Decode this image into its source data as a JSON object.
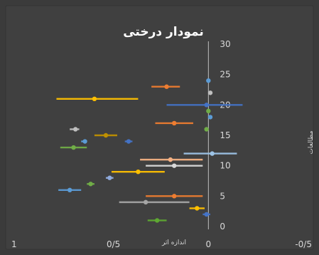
{
  "chart_data": {
    "type": "scatter",
    "title": "نمودار درختی",
    "xlabel": "اندازه اثر",
    "ylabel": "مطالعات",
    "x_reversed": true,
    "xlim": [
      -0.5,
      1
    ],
    "ylim": [
      0,
      30
    ],
    "x_ticks": [
      1,
      0.5,
      0,
      -0.5
    ],
    "x_tick_labels": [
      "1",
      "0/5",
      "0",
      "-0/5"
    ],
    "y_ticks": [
      0,
      5,
      10,
      15,
      20,
      25,
      30
    ],
    "y_tick_labels": [
      "0",
      "5",
      "10",
      "15",
      "20",
      "25",
      "30"
    ],
    "grid": false,
    "colors": {
      "background": "#3b3b3b",
      "plot_area": "#404040",
      "text": "#d9d9d9",
      "title": "#ffffff"
    },
    "points": [
      {
        "y": 1,
        "x": 0.27,
        "lo": 0.22,
        "hi": 0.32,
        "color": "#5ea832"
      },
      {
        "y": 2,
        "x": 0.01,
        "lo": -0.01,
        "hi": 0.03,
        "color": "#4472c4"
      },
      {
        "y": 3,
        "x": 0.06,
        "lo": 0.02,
        "hi": 0.1,
        "color": "#ffc000"
      },
      {
        "y": 4,
        "x": 0.33,
        "lo": 0.1,
        "hi": 0.47,
        "color": "#a5a5a5"
      },
      {
        "y": 5,
        "x": 0.18,
        "lo": 0.03,
        "hi": 0.33,
        "color": "#ed7d31"
      },
      {
        "y": 6,
        "x": 0.73,
        "lo": 0.67,
        "hi": 0.79,
        "color": "#5b9bd5"
      },
      {
        "y": 7,
        "x": 0.62,
        "lo": 0.6,
        "hi": 0.64,
        "color": "#70ad47"
      },
      {
        "y": 8,
        "x": 0.52,
        "lo": 0.5,
        "hi": 0.54,
        "color": "#8faadc"
      },
      {
        "y": 9,
        "x": 0.37,
        "lo": 0.23,
        "hi": 0.51,
        "color": "#ffc000"
      },
      {
        "y": 10,
        "x": 0.18,
        "lo": 0.03,
        "hi": 0.33,
        "color": "#d9d9d9"
      },
      {
        "y": 11,
        "x": 0.2,
        "lo": 0.03,
        "hi": 0.36,
        "color": "#f4b183"
      },
      {
        "y": 12,
        "x": -0.02,
        "lo": -0.15,
        "hi": 0.13,
        "color": "#9dc3e6"
      },
      {
        "y": 14,
        "x": 0.42,
        "lo": 0.4,
        "hi": 0.44,
        "color": "#4472c4"
      },
      {
        "y": 14,
        "x": 0.65,
        "lo": 0.64,
        "hi": 0.67,
        "color": "#5b9bd5"
      },
      {
        "y": 13,
        "x": 0.71,
        "lo": 0.64,
        "hi": 0.78,
        "color": "#70ad47"
      },
      {
        "y": 15,
        "x": 0.54,
        "lo": 0.48,
        "hi": 0.6,
        "color": "#bf9000"
      },
      {
        "y": 16,
        "x": 0.7,
        "lo": 0.68,
        "hi": 0.73,
        "color": "#bfbfbf"
      },
      {
        "y": 16,
        "x": 0.01,
        "lo": 0.0,
        "hi": 0.02,
        "color": "#70ad47"
      },
      {
        "y": 17,
        "x": 0.18,
        "lo": 0.08,
        "hi": 0.28,
        "color": "#ed7d31"
      },
      {
        "y": 18,
        "x": -0.01,
        "lo": -0.02,
        "hi": 0.0,
        "color": "#5b9bd5"
      },
      {
        "y": 19,
        "x": 0.0,
        "lo": -0.01,
        "hi": 0.01,
        "color": "#70ad47"
      },
      {
        "y": 20,
        "x": 0.01,
        "lo": -0.18,
        "hi": 0.22,
        "color": "#4472c4"
      },
      {
        "y": 21,
        "x": 0.6,
        "lo": 0.37,
        "hi": 0.8,
        "color": "#ffc000"
      },
      {
        "y": 22,
        "x": -0.01,
        "lo": -0.02,
        "hi": 0.0,
        "color": "#bfbfbf"
      },
      {
        "y": 23,
        "x": 0.22,
        "lo": 0.15,
        "hi": 0.3,
        "color": "#ed7d31"
      },
      {
        "y": 24,
        "x": 0.0,
        "lo": -0.01,
        "hi": 0.01,
        "color": "#5b9bd5"
      }
    ]
  }
}
